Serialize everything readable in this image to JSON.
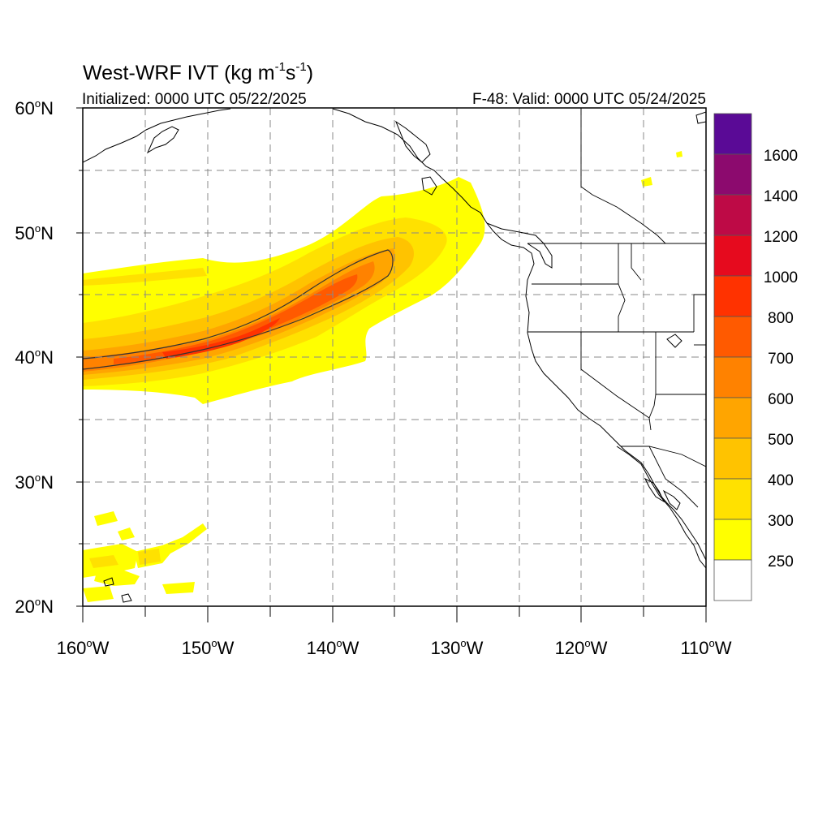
{
  "title": {
    "main": "West-WRF IVT (kg m",
    "exp1": "-1",
    "mid": "s",
    "exp2": "-1",
    "close": ")"
  },
  "init_label": "Initialized: 0000 UTC 05/22/2025",
  "valid_label": "F-48: Valid: 0000 UTC 05/24/2025",
  "lat_labels": [
    {
      "deg": "60",
      "hemi": "N"
    },
    {
      "deg": "50",
      "hemi": "N"
    },
    {
      "deg": "40",
      "hemi": "N"
    },
    {
      "deg": "30",
      "hemi": "N"
    },
    {
      "deg": "20",
      "hemi": "N"
    }
  ],
  "lon_labels": [
    {
      "deg": "160",
      "hemi": "W"
    },
    {
      "deg": "150",
      "hemi": "W"
    },
    {
      "deg": "140",
      "hemi": "W"
    },
    {
      "deg": "130",
      "hemi": "W"
    },
    {
      "deg": "120",
      "hemi": "W"
    },
    {
      "deg": "110",
      "hemi": "W"
    }
  ],
  "map_extent": {
    "lon_min": -160,
    "lon_max": -110,
    "lat_min": 20,
    "lat_max": 60
  },
  "colorbar": {
    "labels": [
      "1600",
      "1400",
      "1200",
      "1000",
      "800",
      "700",
      "600",
      "500",
      "400",
      "300",
      "250"
    ],
    "colors": [
      "#5a0a96",
      "#8c0a6e",
      "#be0a46",
      "#e60a1e",
      "#ff3200",
      "#ff5a00",
      "#ff8200",
      "#ffa500",
      "#ffc300",
      "#ffe100",
      "#ffff00",
      "#ffffff"
    ]
  },
  "ivt_palette": {
    "250": "#ffff00",
    "300": "#ffe100",
    "400": "#ffc300",
    "500": "#ffa500",
    "600": "#ff8200",
    "700": "#ff5a00",
    "800": "#ff3200"
  },
  "contour_value": "500"
}
